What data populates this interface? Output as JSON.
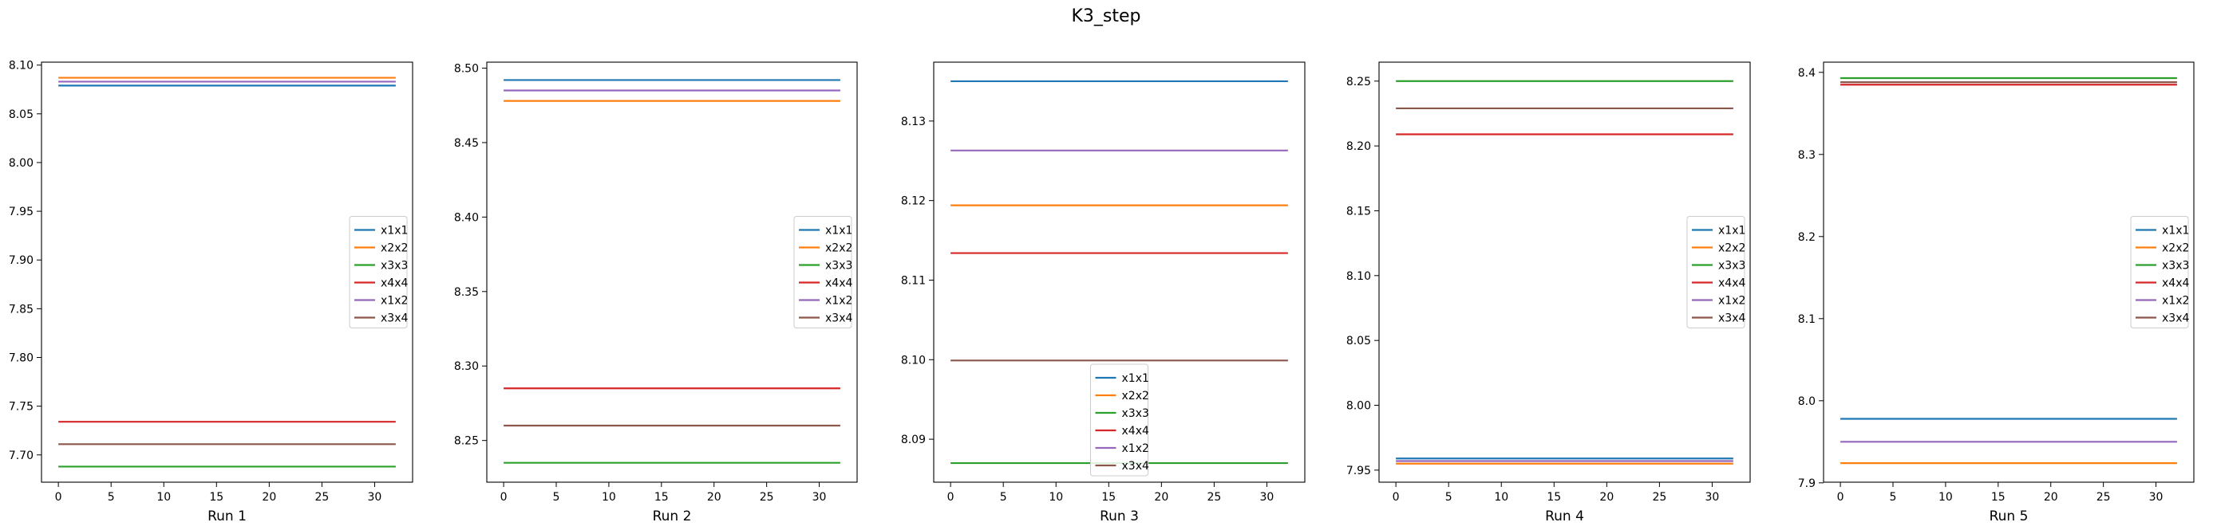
{
  "suptitle": "K3_step",
  "colors": {
    "x1x1": "#1f77b4",
    "x2x2": "#ff7f0e",
    "x3x3": "#2ca02c",
    "x4x4": "#d62728",
    "x1x2": "#9467bd",
    "x3x4": "#8c564b"
  },
  "chart_data": [
    {
      "type": "line",
      "xlabel": "Run 1",
      "ylabel": "",
      "xlim": [
        -1.6,
        33.6
      ],
      "ylim": [
        7.672,
        8.103
      ],
      "xticks": [
        0,
        5,
        10,
        15,
        20,
        25,
        30
      ],
      "yticks": [
        7.7,
        7.75,
        7.8,
        7.85,
        7.9,
        7.95,
        8.0,
        8.05,
        8.1
      ],
      "ytick_labels": [
        "7.70",
        "7.75",
        "7.80",
        "7.85",
        "7.90",
        "7.95",
        "8.00",
        "8.05",
        "8.10"
      ],
      "x_range": [
        0,
        32
      ],
      "legend_loc": "center right",
      "series": [
        {
          "name": "x1x1",
          "value": 8.079
        },
        {
          "name": "x2x2",
          "value": 8.087
        },
        {
          "name": "x3x3",
          "value": 7.688
        },
        {
          "name": "x4x4",
          "value": 7.734
        },
        {
          "name": "x1x2",
          "value": 8.083
        },
        {
          "name": "x3x4",
          "value": 7.711
        }
      ]
    },
    {
      "type": "line",
      "xlabel": "Run 2",
      "ylabel": "",
      "xlim": [
        -1.6,
        33.6
      ],
      "ylim": [
        8.222,
        8.504
      ],
      "xticks": [
        0,
        5,
        10,
        15,
        20,
        25,
        30
      ],
      "yticks": [
        8.25,
        8.3,
        8.35,
        8.4,
        8.45,
        8.5
      ],
      "ytick_labels": [
        "8.25",
        "8.30",
        "8.35",
        "8.40",
        "8.45",
        "8.50"
      ],
      "x_range": [
        0,
        32
      ],
      "legend_loc": "center right",
      "series": [
        {
          "name": "x1x1",
          "value": 8.492
        },
        {
          "name": "x2x2",
          "value": 8.478
        },
        {
          "name": "x3x3",
          "value": 8.235
        },
        {
          "name": "x4x4",
          "value": 8.285
        },
        {
          "name": "x1x2",
          "value": 8.485
        },
        {
          "name": "x3x4",
          "value": 8.26
        }
      ]
    },
    {
      "type": "line",
      "xlabel": "Run 3",
      "ylabel": "",
      "xlim": [
        -1.6,
        33.6
      ],
      "ylim": [
        8.0846,
        8.1374
      ],
      "xticks": [
        0,
        5,
        10,
        15,
        20,
        25,
        30
      ],
      "yticks": [
        8.09,
        8.1,
        8.11,
        8.12,
        8.13
      ],
      "ytick_labels": [
        "8.09",
        "8.10",
        "8.11",
        "8.12",
        "8.13"
      ],
      "x_range": [
        0,
        32
      ],
      "legend_loc": "lower center",
      "series": [
        {
          "name": "x1x1",
          "value": 8.135
        },
        {
          "name": "x2x2",
          "value": 8.1194
        },
        {
          "name": "x3x3",
          "value": 8.087
        },
        {
          "name": "x4x4",
          "value": 8.1134
        },
        {
          "name": "x1x2",
          "value": 8.1263
        },
        {
          "name": "x3x4",
          "value": 8.0999
        }
      ]
    },
    {
      "type": "line",
      "xlabel": "Run 4",
      "ylabel": "",
      "xlim": [
        -1.6,
        33.6
      ],
      "ylim": [
        7.9407,
        8.2646
      ],
      "xticks": [
        0,
        5,
        10,
        15,
        20,
        25,
        30
      ],
      "yticks": [
        7.95,
        8.0,
        8.05,
        8.1,
        8.15,
        8.2,
        8.25
      ],
      "ytick_labels": [
        "7.95",
        "8.00",
        "8.05",
        "8.10",
        "8.15",
        "8.20",
        "8.25"
      ],
      "x_range": [
        0,
        32
      ],
      "legend_loc": "center right",
      "series": [
        {
          "name": "x1x1",
          "value": 7.959
        },
        {
          "name": "x2x2",
          "value": 7.955
        },
        {
          "name": "x3x3",
          "value": 8.25
        },
        {
          "name": "x4x4",
          "value": 8.209
        },
        {
          "name": "x1x2",
          "value": 7.957
        },
        {
          "name": "x3x4",
          "value": 8.229
        }
      ]
    },
    {
      "type": "line",
      "xlabel": "Run 5",
      "ylabel": "",
      "xlim": [
        -1.6,
        33.6
      ],
      "ylim": [
        7.9008,
        8.4124
      ],
      "xticks": [
        0,
        5,
        10,
        15,
        20,
        25,
        30
      ],
      "yticks": [
        7.9,
        8.0,
        8.1,
        8.2,
        8.3,
        8.4
      ],
      "ytick_labels": [
        "7.9",
        "8.0",
        "8.1",
        "8.2",
        "8.3",
        "8.4"
      ],
      "x_range": [
        0,
        32
      ],
      "legend_loc": "center right",
      "series": [
        {
          "name": "x1x1",
          "value": 7.978
        },
        {
          "name": "x2x2",
          "value": 7.924
        },
        {
          "name": "x3x3",
          "value": 8.393
        },
        {
          "name": "x4x4",
          "value": 8.385
        },
        {
          "name": "x1x2",
          "value": 7.95
        },
        {
          "name": "x3x4",
          "value": 8.388
        }
      ]
    }
  ]
}
